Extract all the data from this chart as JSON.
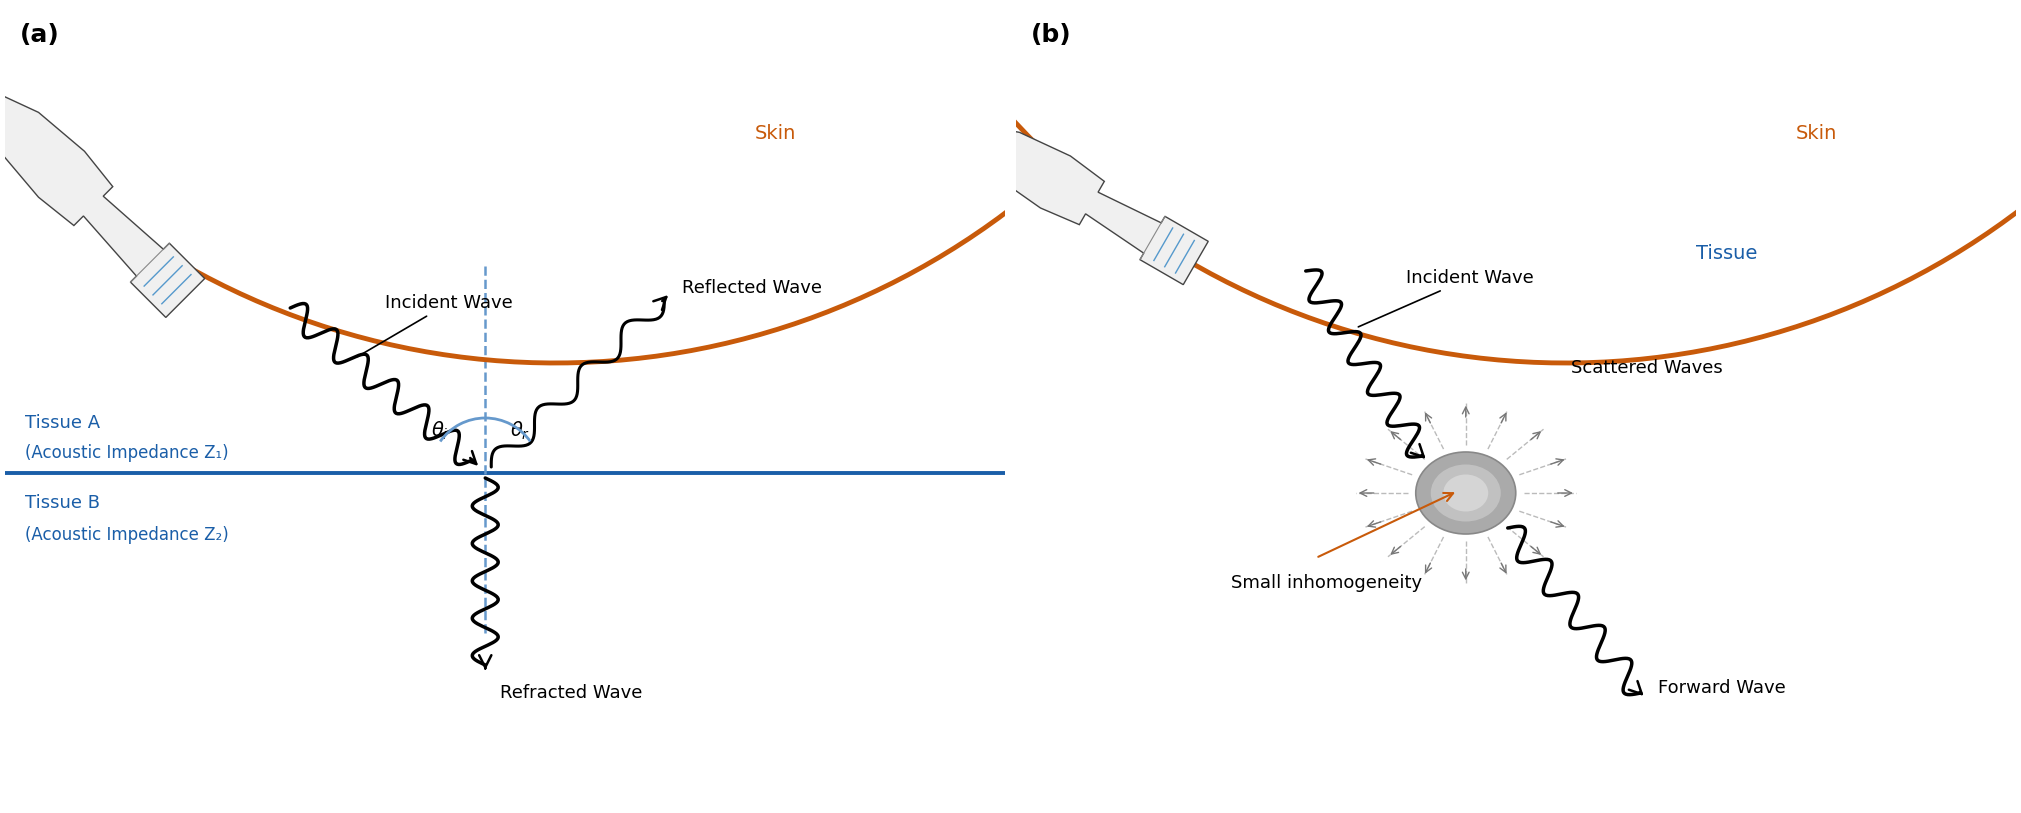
{
  "skin_color": "#C85A0A",
  "blue_color": "#1A5EA8",
  "tissue_line_color": "#1A5EA8",
  "dashed_color": "#6699CC",
  "black": "#000000",
  "white": "#FFFFFF",
  "gray_light": "#CCCCCC",
  "gray_mid": "#999999",
  "gray_dark": "#555555",
  "orange_color": "#C85A0A",
  "label_a": "(a)",
  "label_b": "(b)",
  "skin_label": "Skin",
  "tissue_label": "Tissue",
  "tissue_a_label": "Tissue A",
  "tissue_a_sub": "(Acoustic Impedance Z₁)",
  "tissue_b_label": "Tissue B",
  "tissue_b_sub": "(Acoustic Impedance Z₂)",
  "incident_wave_label": "Incident Wave",
  "reflected_wave_label": "Reflected Wave",
  "refracted_wave_label": "Refracted Wave",
  "scattered_label": "Scattered Waves",
  "forward_label": "Forward Wave",
  "inhomogeneity_label": "Small inhomogeneity"
}
